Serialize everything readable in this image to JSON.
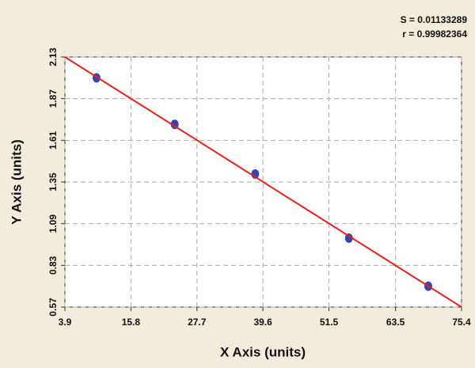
{
  "chart_data": {
    "type": "scatter",
    "annotations": [
      "S = 0.01133289",
      "r = 0.99982364"
    ],
    "xlabel": "X Axis (units)",
    "ylabel": "Y Axis (units)",
    "xlim": [
      3.9,
      75.4
    ],
    "xticks": [
      3.9,
      15.8,
      27.7,
      39.6,
      51.5,
      63.5,
      75.4
    ],
    "ylim": [
      0.57,
      2.13
    ],
    "yticks": [
      0.57,
      0.83,
      1.09,
      1.35,
      1.61,
      1.87,
      2.13
    ],
    "grid": true,
    "series": [
      {
        "mode": "markers",
        "color": "#3347b0",
        "x": [
          9.6,
          23.7,
          38.2,
          55.1,
          69.4
        ],
        "values": [
          2.0,
          1.71,
          1.4,
          1.0,
          0.7
        ]
      },
      {
        "mode": "line",
        "color": "#e8201c",
        "x": [
          3.9,
          75.4
        ],
        "values": [
          2.13,
          0.57
        ]
      }
    ]
  }
}
